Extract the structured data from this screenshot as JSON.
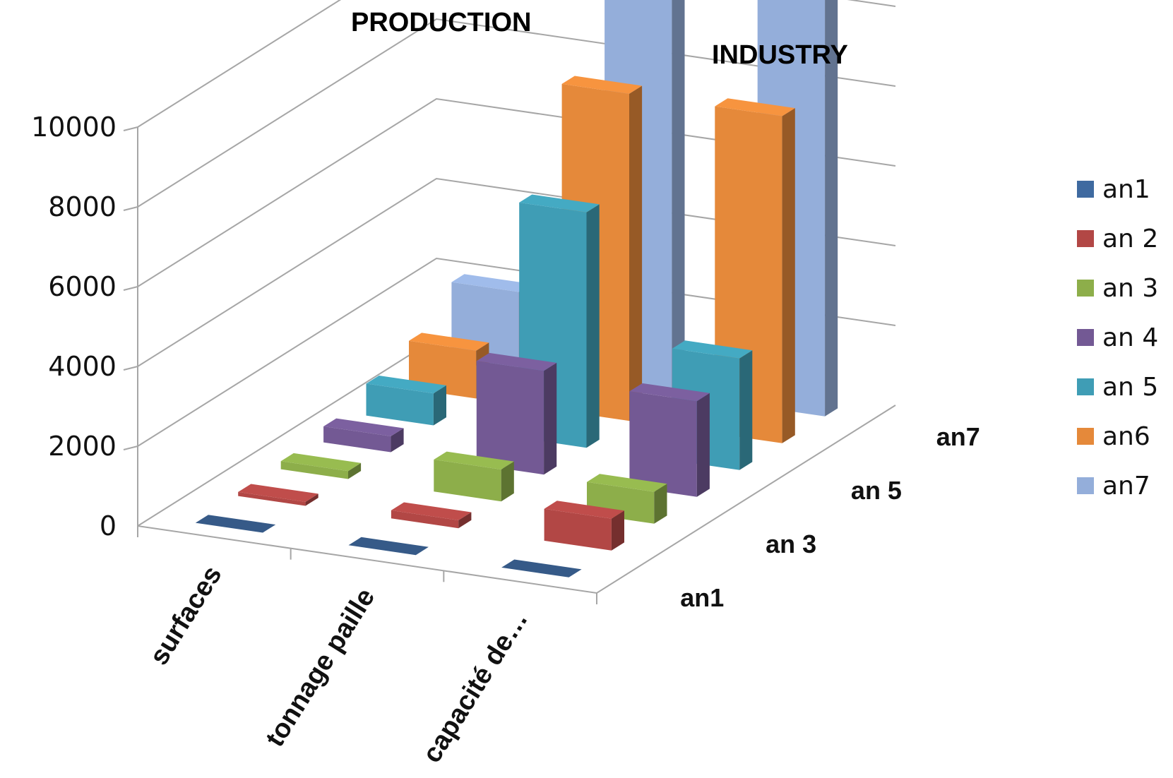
{
  "chart_data": {
    "type": "bar",
    "variant": "3d-column",
    "title": "PRODUCTION",
    "annotations": [
      "INDUSTRY"
    ],
    "categories": [
      "surfaces",
      "tonnage paille",
      "capacité de…"
    ],
    "depth_labels": [
      "an1",
      "an 3",
      "an 5",
      "an7"
    ],
    "ylim": [
      0,
      10000
    ],
    "yticks": [
      0,
      2000,
      4000,
      6000,
      8000,
      10000
    ],
    "grid": true,
    "legend_position": "right",
    "series": [
      {
        "name": "an1",
        "color": "#3F6AA0",
        "values": [
          0,
          0,
          0
        ]
      },
      {
        "name": "an 2",
        "color": "#B24745",
        "values": [
          100,
          200,
          800
        ]
      },
      {
        "name": "an 3",
        "color": "#8DAE4A",
        "values": [
          200,
          800,
          800
        ]
      },
      {
        "name": "an 4",
        "color": "#735994",
        "values": [
          400,
          2600,
          2400
        ]
      },
      {
        "name": "an 5",
        "color": "#3F9DB5",
        "values": [
          800,
          5900,
          2800
        ]
      },
      {
        "name": "an6",
        "color": "#E5893A",
        "values": [
          1200,
          8200,
          8200
        ]
      },
      {
        "name": "an7",
        "color": "#94AEDA",
        "values": [
          2000,
          10500,
          10500
        ]
      }
    ]
  }
}
